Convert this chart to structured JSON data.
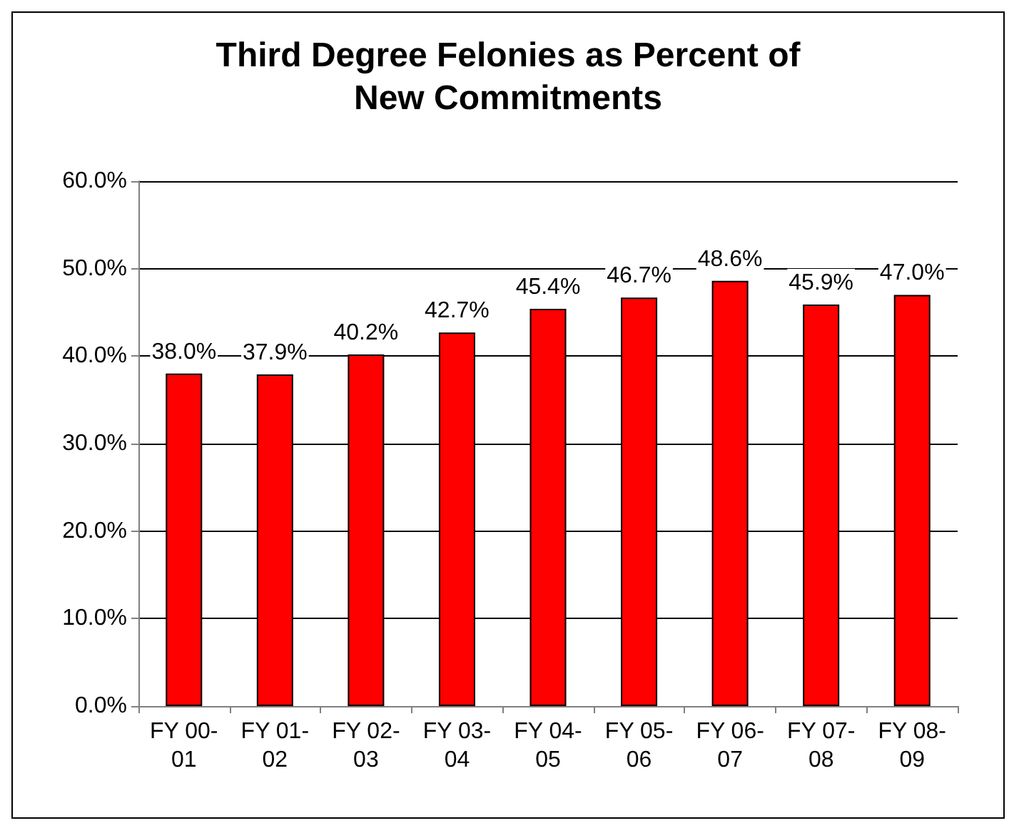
{
  "chart_data": {
    "type": "bar",
    "title": "Third Degree Felonies as Percent of\nNew Commitments",
    "categories": [
      "FY 00-01",
      "FY 01-02",
      "FY 02-03",
      "FY 03-04",
      "FY 04-05",
      "FY 05-06",
      "FY 06-07",
      "FY 07-08",
      "FY 08-09"
    ],
    "values": [
      38.0,
      37.9,
      40.2,
      42.7,
      45.4,
      46.7,
      48.6,
      45.9,
      47.0
    ],
    "value_labels": [
      "38.0%",
      "37.9%",
      "40.2%",
      "42.7%",
      "45.4%",
      "46.7%",
      "48.6%",
      "45.9%",
      "47.0%"
    ],
    "color": "#ff0000",
    "ylim": [
      0,
      60
    ],
    "yticks": [
      {
        "value": 0,
        "label": "0.0%"
      },
      {
        "value": 10,
        "label": "10.0%"
      },
      {
        "value": 20,
        "label": "20.0%"
      },
      {
        "value": 30,
        "label": "30.0%"
      },
      {
        "value": 40,
        "label": "40.0%"
      },
      {
        "value": 50,
        "label": "50.0%"
      },
      {
        "value": 60,
        "label": "60.0%"
      }
    ],
    "grid": "y"
  }
}
